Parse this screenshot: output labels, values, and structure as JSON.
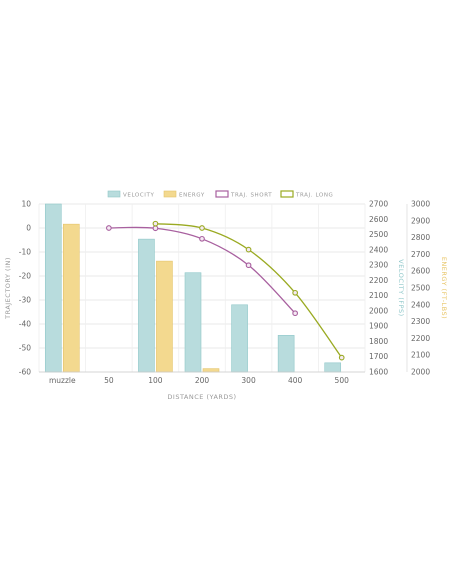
{
  "chart_data": {
    "type": "bar",
    "legend": {
      "placement": "top-center",
      "items": [
        {
          "label": "VELOCITY",
          "style": "bar",
          "color": "#b8dcdd",
          "stroke": "#8fc7c9"
        },
        {
          "label": "ENERGY",
          "style": "bar",
          "color": "#f3d98f",
          "stroke": "#e4c46a"
        },
        {
          "label": "TRAJ. SHORT",
          "style": "line",
          "color": "#a8609f"
        },
        {
          "label": "TRAJ. LONG",
          "style": "line",
          "color": "#9aaa22"
        }
      ]
    },
    "x_axis": {
      "label": "DISTANCE (YARDS)",
      "categories": [
        "muzzle",
        "50",
        "100",
        "200",
        "300",
        "400",
        "500"
      ],
      "distances": [
        0,
        50,
        100,
        200,
        300,
        400,
        500
      ]
    },
    "y_axes": {
      "trajectory": {
        "label": "TRAJECTORY (IN)",
        "min": -60,
        "max": 10,
        "ticks": [
          10,
          0,
          -10,
          -20,
          -30,
          -40,
          -50,
          -60
        ],
        "color": "#999999"
      },
      "velocity": {
        "label": "VELOCITY (FPS)",
        "min": 1600,
        "max": 2700,
        "ticks": [
          2700,
          2600,
          2500,
          2400,
          2300,
          2200,
          2100,
          2000,
          1900,
          1800,
          1700,
          1600
        ],
        "color": "#8fc7c9"
      },
      "energy": {
        "label": "ENERGY (FT-LBS)",
        "min": 2000,
        "max": 3000,
        "ticks": [
          3000,
          2900,
          2800,
          2700,
          2600,
          2500,
          2400,
          2300,
          2200,
          2100,
          2000
        ],
        "color": "#e8c566"
      }
    },
    "series": [
      {
        "name": "VELOCITY",
        "type": "bar",
        "axis": "velocity",
        "values": [
          2700,
          null,
          2470,
          2250,
          2040,
          1840,
          1660
        ]
      },
      {
        "name": "ENERGY",
        "type": "bar",
        "axis": "energy",
        "values": [
          2880,
          null,
          2660,
          2020,
          null,
          null,
          null
        ]
      },
      {
        "name": "TRAJ. SHORT",
        "type": "line",
        "axis": "trajectory",
        "values": [
          null,
          0,
          -0.1,
          -4.5,
          -15.5,
          -35.5,
          null
        ]
      },
      {
        "name": "TRAJ. LONG",
        "type": "line",
        "axis": "trajectory",
        "values": [
          null,
          null,
          1.8,
          0,
          -9,
          -27,
          -54
        ]
      }
    ],
    "grid": true
  }
}
